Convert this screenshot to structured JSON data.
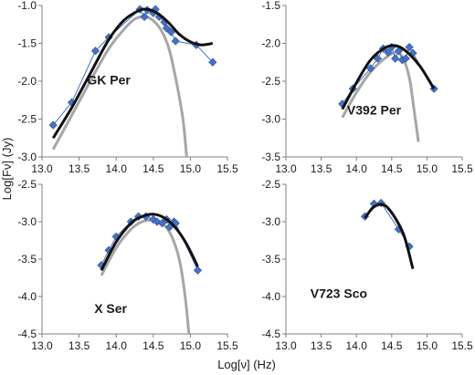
{
  "colors": {
    "data": "#4472c4",
    "data_line": "#4472c4",
    "model": "#111111",
    "reference": "#a6a6a6",
    "axis": "#7f7f7f"
  },
  "labels": {
    "xlabel": "Log[ν]  (Hz)",
    "ylabel": "Log[Fν]  (Jy)"
  },
  "chart_data": [
    {
      "type": "scatter",
      "title": "GK Per",
      "xlim": [
        13.0,
        15.5
      ],
      "ylim": [
        -3.0,
        -1.0
      ],
      "xticks": [
        "13.0",
        "13.5",
        "14.0",
        "14.5",
        "15.0",
        "15.5"
      ],
      "yticks": [
        "-1.0",
        "-1.5",
        "-2.0",
        "-2.5",
        "-3.0"
      ],
      "series": [
        {
          "kind": "observed",
          "points": [
            [
              13.15,
              -2.58
            ],
            [
              13.4,
              -2.28
            ],
            [
              13.72,
              -1.6
            ],
            [
              13.9,
              -1.42
            ],
            [
              14.32,
              -1.05
            ],
            [
              14.38,
              -1.15
            ],
            [
              14.42,
              -1.06
            ],
            [
              14.5,
              -1.1
            ],
            [
              14.53,
              -1.05
            ],
            [
              14.58,
              -1.15
            ],
            [
              14.65,
              -1.22
            ],
            [
              14.68,
              -1.3
            ],
            [
              14.74,
              -1.35
            ],
            [
              14.8,
              -1.47
            ],
            [
              15.08,
              -1.52
            ],
            [
              15.3,
              -1.75
            ]
          ]
        },
        {
          "kind": "fit",
          "points": [
            [
              13.15,
              -2.75
            ],
            [
              13.4,
              -2.35
            ],
            [
              13.65,
              -1.9
            ],
            [
              13.9,
              -1.45
            ],
            [
              14.1,
              -1.2
            ],
            [
              14.3,
              -1.07
            ],
            [
              14.42,
              -1.05
            ],
            [
              14.55,
              -1.1
            ],
            [
              14.7,
              -1.22
            ],
            [
              14.85,
              -1.38
            ],
            [
              15.0,
              -1.48
            ],
            [
              15.15,
              -1.52
            ],
            [
              15.3,
              -1.5
            ]
          ]
        },
        {
          "kind": "reference",
          "points": [
            [
              13.15,
              -2.9
            ],
            [
              13.4,
              -2.45
            ],
            [
              13.65,
              -2.0
            ],
            [
              13.9,
              -1.57
            ],
            [
              14.1,
              -1.32
            ],
            [
              14.25,
              -1.18
            ],
            [
              14.38,
              -1.15
            ],
            [
              14.5,
              -1.2
            ],
            [
              14.62,
              -1.35
            ],
            [
              14.72,
              -1.6
            ],
            [
              14.82,
              -2.05
            ],
            [
              14.9,
              -2.5
            ],
            [
              14.95,
              -3.0
            ]
          ]
        }
      ]
    },
    {
      "type": "scatter",
      "title": "V392 Per",
      "xlim": [
        13.0,
        15.5
      ],
      "ylim": [
        -3.5,
        -1.5
      ],
      "xticks": [
        "13.0",
        "13.5",
        "14.0",
        "14.5",
        "15.0",
        "15.5"
      ],
      "yticks": [
        "-1.5",
        "-2.0",
        "-2.5",
        "-3.0",
        "-3.5"
      ],
      "series": [
        {
          "kind": "observed",
          "points": [
            [
              13.8,
              -2.8
            ],
            [
              13.95,
              -2.6
            ],
            [
              14.2,
              -2.33
            ],
            [
              14.3,
              -2.2
            ],
            [
              14.38,
              -2.07
            ],
            [
              14.45,
              -2.12
            ],
            [
              14.5,
              -2.05
            ],
            [
              14.55,
              -2.2
            ],
            [
              14.6,
              -2.1
            ],
            [
              14.65,
              -2.22
            ],
            [
              14.7,
              -2.2
            ],
            [
              14.75,
              -2.05
            ],
            [
              14.8,
              -2.13
            ],
            [
              15.1,
              -2.6
            ]
          ]
        },
        {
          "kind": "fit",
          "points": [
            [
              13.8,
              -2.87
            ],
            [
              14.0,
              -2.52
            ],
            [
              14.2,
              -2.22
            ],
            [
              14.4,
              -2.06
            ],
            [
              14.55,
              -2.03
            ],
            [
              14.7,
              -2.1
            ],
            [
              14.9,
              -2.3
            ],
            [
              15.1,
              -2.6
            ]
          ]
        },
        {
          "kind": "reference",
          "points": [
            [
              13.8,
              -2.98
            ],
            [
              14.0,
              -2.65
            ],
            [
              14.2,
              -2.38
            ],
            [
              14.4,
              -2.2
            ],
            [
              14.55,
              -2.12
            ],
            [
              14.65,
              -2.18
            ],
            [
              14.75,
              -2.45
            ],
            [
              14.82,
              -2.9
            ],
            [
              14.88,
              -3.3
            ]
          ]
        }
      ]
    },
    {
      "type": "scatter",
      "title": "X Ser",
      "xlim": [
        13.0,
        15.5
      ],
      "ylim": [
        -4.5,
        -2.5
      ],
      "xticks": [
        "13.0",
        "13.5",
        "14.0",
        "14.5",
        "15.0",
        "15.5"
      ],
      "yticks": [
        "-2.5",
        "-3.0",
        "-3.5",
        "-4.0",
        "-4.5"
      ],
      "series": [
        {
          "kind": "observed",
          "points": [
            [
              13.8,
              -3.58
            ],
            [
              13.9,
              -3.38
            ],
            [
              14.0,
              -3.2
            ],
            [
              14.2,
              -3.0
            ],
            [
              14.3,
              -2.93
            ],
            [
              14.4,
              -2.93
            ],
            [
              14.5,
              -2.97
            ],
            [
              14.55,
              -3.0
            ],
            [
              14.62,
              -3.02
            ],
            [
              14.68,
              -2.97
            ],
            [
              14.72,
              -3.07
            ],
            [
              14.78,
              -3.0
            ],
            [
              14.8,
              -3.02
            ],
            [
              15.1,
              -3.65
            ]
          ]
        },
        {
          "kind": "fit",
          "points": [
            [
              13.8,
              -3.65
            ],
            [
              14.0,
              -3.27
            ],
            [
              14.2,
              -3.02
            ],
            [
              14.35,
              -2.93
            ],
            [
              14.5,
              -2.9
            ],
            [
              14.65,
              -2.95
            ],
            [
              14.8,
              -3.08
            ],
            [
              14.95,
              -3.3
            ],
            [
              15.1,
              -3.6
            ]
          ]
        },
        {
          "kind": "reference",
          "points": [
            [
              13.8,
              -3.72
            ],
            [
              14.0,
              -3.35
            ],
            [
              14.2,
              -3.1
            ],
            [
              14.35,
              -3.0
            ],
            [
              14.5,
              -2.98
            ],
            [
              14.65,
              -3.05
            ],
            [
              14.75,
              -3.2
            ],
            [
              14.85,
              -3.5
            ],
            [
              14.93,
              -4.0
            ],
            [
              14.98,
              -4.5
            ]
          ]
        }
      ]
    },
    {
      "type": "scatter",
      "title": "V723 Sco",
      "xlim": [
        13.0,
        15.5
      ],
      "ylim": [
        -4.5,
        -2.5
      ],
      "xticks": [
        "13.0",
        "13.5",
        "14.0",
        "14.5",
        "15.0",
        "15.5"
      ],
      "yticks": [
        "-2.5",
        "-3.0",
        "-3.5",
        "-4.0",
        "-4.5"
      ],
      "series": [
        {
          "kind": "observed",
          "points": [
            [
              14.12,
              -2.93
            ],
            [
              14.25,
              -2.76
            ],
            [
              14.35,
              -2.75
            ],
            [
              14.6,
              -3.1
            ],
            [
              14.75,
              -3.33
            ]
          ]
        },
        {
          "kind": "fit",
          "points": [
            [
              14.12,
              -2.95
            ],
            [
              14.25,
              -2.8
            ],
            [
              14.4,
              -2.78
            ],
            [
              14.55,
              -2.95
            ],
            [
              14.68,
              -3.2
            ],
            [
              14.8,
              -3.63
            ]
          ]
        }
      ]
    }
  ]
}
